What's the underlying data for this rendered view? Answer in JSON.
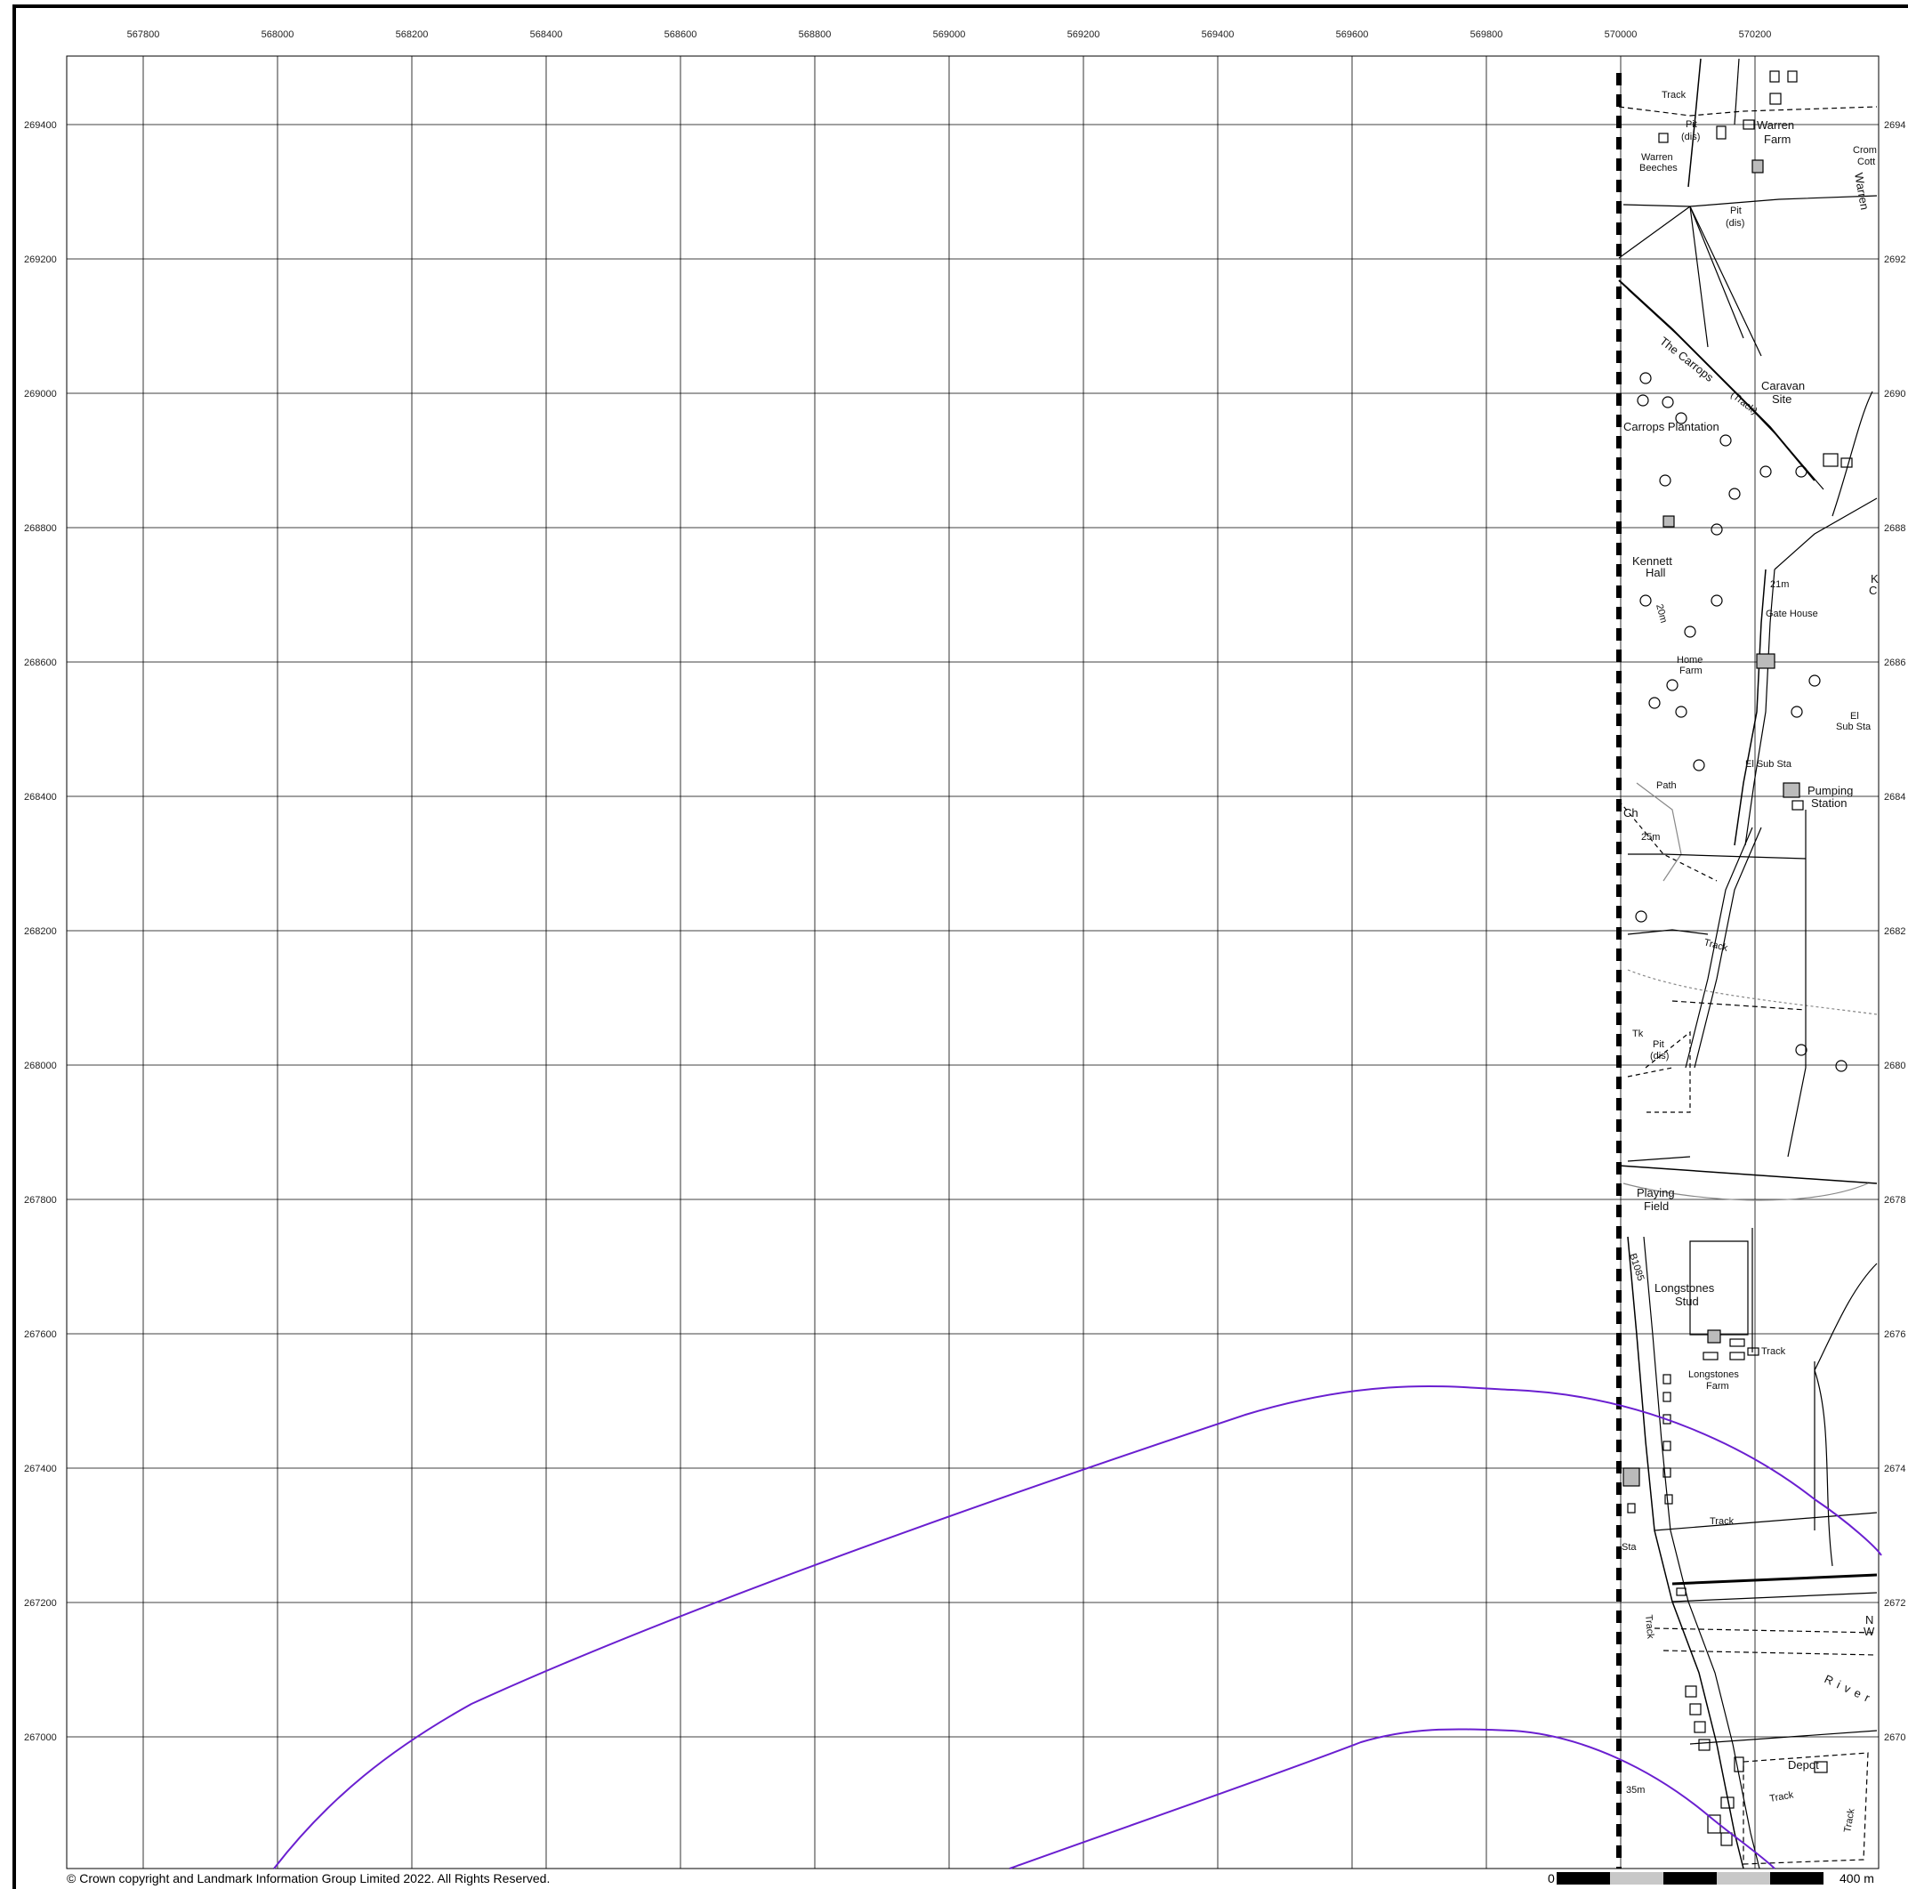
{
  "map": {
    "x_labels": [
      "567800",
      "568000",
      "568200",
      "568400",
      "568600",
      "568800",
      "569000",
      "569200",
      "569400",
      "569600",
      "569800",
      "570000",
      "570200"
    ],
    "y_labels_left": [
      "269400",
      "269200",
      "269000",
      "268800",
      "268600",
      "268400",
      "268200",
      "268000",
      "267800",
      "267600",
      "267400",
      "267200",
      "267000"
    ],
    "y_labels_right": [
      "2694",
      "2692",
      "2690",
      "2688",
      "2686",
      "2684",
      "2682",
      "2680",
      "2678",
      "2676",
      "2674",
      "2672",
      "2670"
    ],
    "place_labels": {
      "track_top": "Track",
      "pit_dis_1": "Pit",
      "pit_dis_1b": "(dis)",
      "warren_farm_1": "Warren",
      "warren_farm_2": "Farm",
      "warren_beeches_1": "Warren",
      "warren_beeches_2": "Beeches",
      "crom_1": "Crom",
      "crom_2": "Cott",
      "warren_side": "Warren",
      "pit_dis_2": "Pit",
      "pit_dis_2b": "(dis)",
      "the_carrops": "The Carrops",
      "track_carrops": "(Track)",
      "caravan_1": "Caravan",
      "caravan_2": "Site",
      "carrops_plantation": "Carrops Plantation",
      "kennett_1": "Kennett",
      "kennett_2": "Hall",
      "contour_20": "20m",
      "contour_21": "21m",
      "gate_house": "Gate House",
      "home_farm_1": "Home",
      "home_farm_2": "Farm",
      "el_sub_1": "El",
      "el_sub_2": "Sub Sta",
      "el_sub_sta": "El Sub Sta",
      "path": "Path",
      "pumping_1": "Pumping",
      "pumping_2": "Station",
      "ch": "Ch",
      "contour_25": "25m",
      "track_mid": "Track",
      "tk": "Tk",
      "pit_dis_3": "Pit",
      "pit_dis_3b": "(dis)",
      "playing_1": "Playing",
      "playing_2": "Field",
      "b1085": "B1085",
      "longstones_stud_1": "Longstones",
      "longstones_stud_2": "Stud",
      "track_stud": "Track",
      "longstones_farm_1": "Longstones",
      "longstones_farm_2": "Farm",
      "track_low": "Track",
      "sta": "Sta",
      "river": "River",
      "track_side": "Track",
      "depot": "Depot",
      "track_depot": "Track",
      "track_right": "Track",
      "contour_35": "35m",
      "k_label": "K",
      "c_label": "C",
      "n_label": "N",
      "w_label": "W"
    }
  },
  "footer": {
    "copyright": "© Crown copyright and Landmark Information Group Limited 2022.  All Rights Reserved.",
    "scale_start": "0",
    "scale_end": "400 m"
  },
  "colors": {
    "grid": "#000000",
    "boundary_curve": "#6a1fd0",
    "scale_dark": "#000000",
    "scale_light": "#c8c8c8"
  }
}
